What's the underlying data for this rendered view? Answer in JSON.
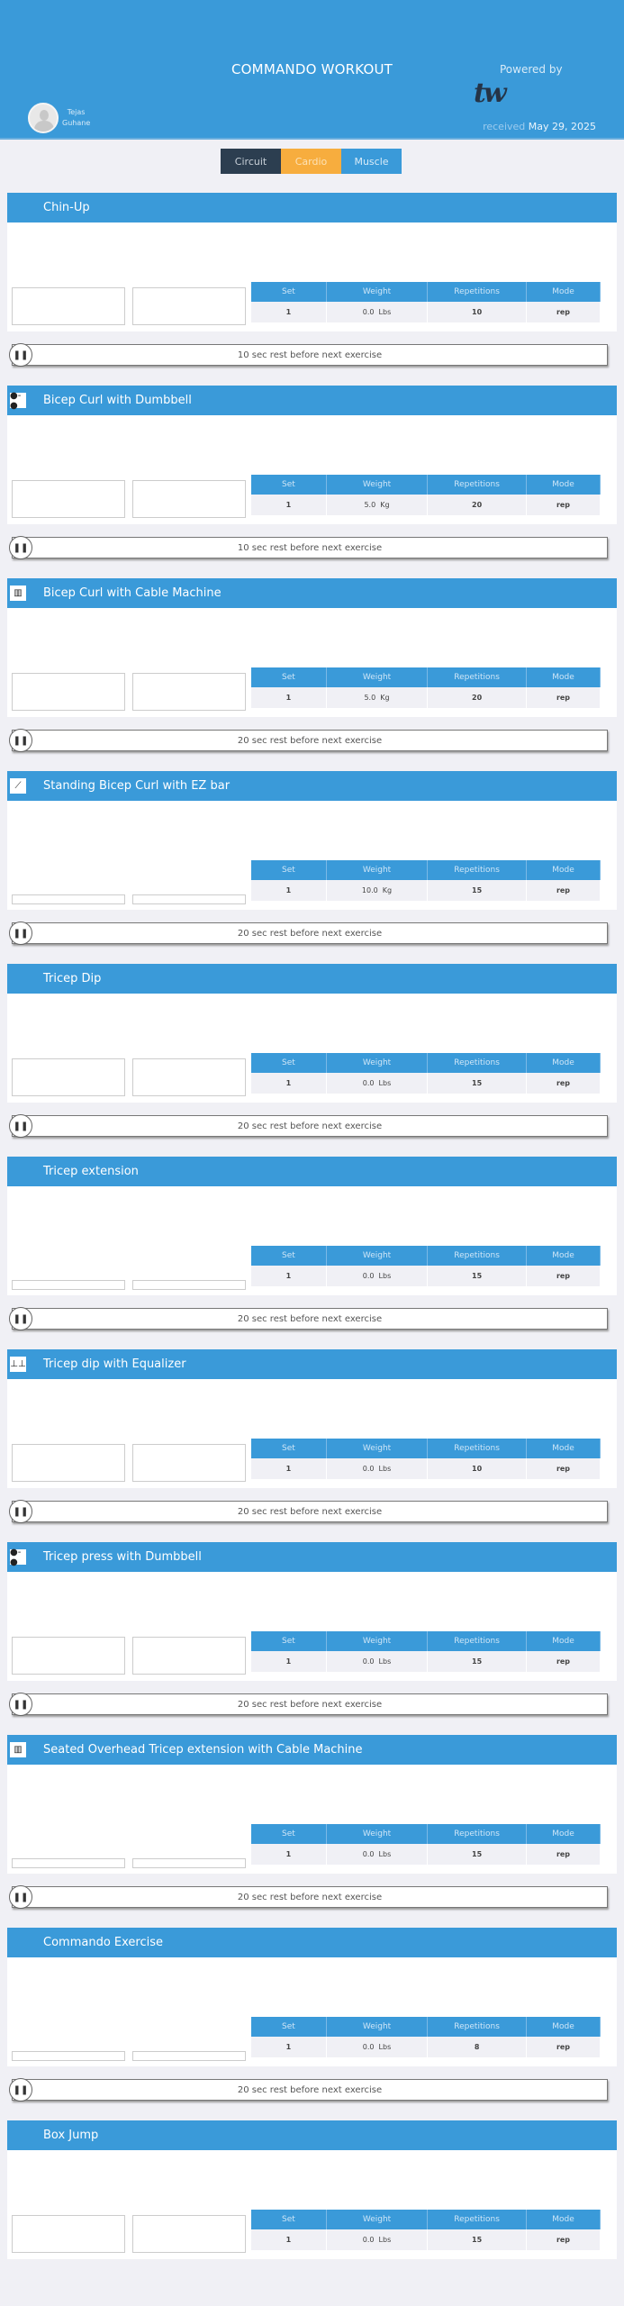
{
  "header": {
    "title": "COMMANDO WORKOUT",
    "powered_by": "Powered by",
    "logo_text": "tw",
    "received_label": "received",
    "received_date": "May 29, 2025",
    "user_first": "Tejas",
    "user_last": "Guhane"
  },
  "tabs": [
    {
      "label": "Circuit",
      "bg": "#2c3e50",
      "fg": "#c8d0d8"
    },
    {
      "label": "Cardio",
      "bg": "#f7ad3e",
      "fg": "#fde2b5"
    },
    {
      "label": "Muscle",
      "bg": "#3a9ad9",
      "fg": "#d8ebf8"
    }
  ],
  "table_headers": [
    "Set",
    "Weight",
    "Repetitions",
    "Mode"
  ],
  "colors": {
    "primary": "#3a9ad9",
    "background": "#f0f0f5"
  },
  "exercises": [
    {
      "name": "Chin-Up",
      "icon": "",
      "set": "1",
      "weight": "0.0  Lbs",
      "reps": "10",
      "mode": "rep",
      "rest": "10 sec rest before next exercise"
    },
    {
      "name": "Bicep Curl with Dumbbell",
      "icon": "dumbbell-icon",
      "set": "1",
      "weight": "5.0  Kg",
      "reps": "20",
      "mode": "rep",
      "rest": "10 sec rest before next exercise"
    },
    {
      "name": "Bicep Curl with Cable Machine",
      "icon": "cable-machine-icon",
      "set": "1",
      "weight": "5.0  Kg",
      "reps": "20",
      "mode": "rep",
      "rest": "20 sec rest before next exercise"
    },
    {
      "name": "Standing Bicep Curl with EZ bar",
      "icon": "ez-bar-icon",
      "set": "1",
      "weight": "10.0  Kg",
      "reps": "15",
      "mode": "rep",
      "rest": "20 sec rest before next exercise"
    },
    {
      "name": "Tricep Dip",
      "icon": "",
      "set": "1",
      "weight": "0.0  Lbs",
      "reps": "15",
      "mode": "rep",
      "rest": "20 sec rest before next exercise"
    },
    {
      "name": "Tricep extension",
      "icon": "",
      "set": "1",
      "weight": "0.0  Lbs",
      "reps": "15",
      "mode": "rep",
      "rest": "20 sec rest before next exercise"
    },
    {
      "name": "Tricep dip with Equalizer",
      "icon": "equalizer-icon",
      "set": "1",
      "weight": "0.0  Lbs",
      "reps": "10",
      "mode": "rep",
      "rest": "20 sec rest before next exercise"
    },
    {
      "name": "Tricep press with Dumbbell",
      "icon": "dumbbell-icon",
      "set": "1",
      "weight": "0.0  Lbs",
      "reps": "15",
      "mode": "rep",
      "rest": "20 sec rest before next exercise"
    },
    {
      "name": "Seated Overhead Tricep extension with Cable Machine",
      "icon": "cable-machine-icon",
      "set": "1",
      "weight": "0.0  Lbs",
      "reps": "15",
      "mode": "rep",
      "rest": "20 sec rest before next exercise"
    },
    {
      "name": "Commando Exercise",
      "icon": "",
      "set": "1",
      "weight": "0.0  Lbs",
      "reps": "8",
      "mode": "rep",
      "rest": "20 sec rest before next exercise"
    },
    {
      "name": "Box Jump",
      "icon": "",
      "set": "1",
      "weight": "0.0  Lbs",
      "reps": "15",
      "mode": "rep",
      "rest": ""
    }
  ]
}
